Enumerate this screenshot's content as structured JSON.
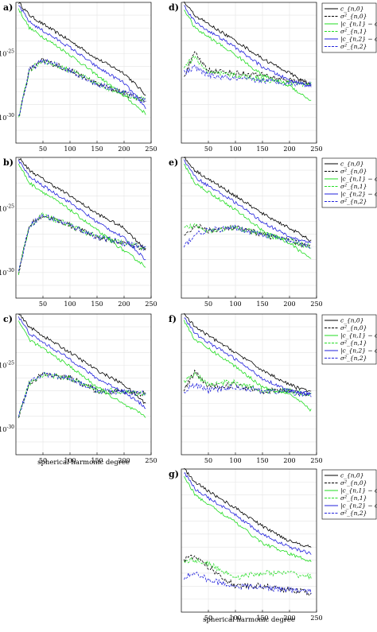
{
  "figure": {
    "xlabel": "spherical harmonic degree"
  },
  "legend_entries": [
    {
      "label": "c_{n,0}",
      "color": "#000000",
      "dash": false
    },
    {
      "label": "σ²_{n,0}",
      "color": "#000000",
      "dash": true
    },
    {
      "label": "|c_{n,1} − c_{n,0}|",
      "color": "#22dd22",
      "dash": false
    },
    {
      "label": "σ²_{n,1}",
      "color": "#22dd22",
      "dash": true
    },
    {
      "label": "|c_{n,2} − c_{n,0}|",
      "color": "#2222dd",
      "dash": false
    },
    {
      "label": "σ²_{n,2}",
      "color": "#2222dd",
      "dash": true
    }
  ],
  "chart_data": [
    {
      "type": "line",
      "panel": "a)",
      "x": [
        5,
        245
      ],
      "xlim": [
        0,
        250
      ],
      "log_y": true,
      "ylim": [
        1e-32,
        1e-21
      ],
      "yticks": [
        "10^{-25}",
        "10^{-30}"
      ],
      "xticks": [
        50,
        100,
        150,
        200,
        250
      ],
      "series": [
        {
          "legend": "c_{n,0}",
          "x": [
            5,
            25,
            50,
            100,
            150,
            200,
            240
          ],
          "y": [
            1e-21,
            1e-22,
            2e-23,
            1e-24,
            4e-26,
            3e-27,
            6e-29
          ]
        },
        {
          "legend": "σ²_{n,0}",
          "x": [
            5,
            25,
            50,
            100,
            150,
            200,
            240
          ],
          "y": [
            1e-30,
            5e-27,
            3e-26,
            5e-27,
            4e-28,
            8e-29,
            2e-29
          ]
        },
        {
          "legend": "|c_{n,1} − c_{n,0}|",
          "x": [
            5,
            25,
            50,
            100,
            150,
            200,
            240
          ],
          "y": [
            3e-22,
            1e-23,
            2e-24,
            8e-26,
            2e-27,
            5e-29,
            2e-30
          ]
        },
        {
          "legend": "σ²_{n,1}",
          "x": [
            5,
            25,
            50,
            100,
            150,
            200,
            240
          ],
          "y": [
            1e-30,
            5e-27,
            3e-26,
            5e-27,
            4e-28,
            8e-29,
            2e-29
          ]
        },
        {
          "legend": "|c_{n,2} − c_{n,0}|",
          "x": [
            5,
            25,
            50,
            100,
            150,
            200,
            240
          ],
          "y": [
            6e-22,
            3e-23,
            6e-24,
            3e-25,
            9e-27,
            5e-28,
            6e-30
          ]
        },
        {
          "legend": "σ²_{n,2}",
          "x": [
            5,
            25,
            50,
            100,
            150,
            200,
            240
          ],
          "y": [
            1e-30,
            5e-27,
            3e-26,
            5e-27,
            4e-28,
            1e-28,
            2e-29
          ]
        }
      ]
    },
    {
      "type": "line",
      "panel": "b)",
      "xlim": [
        0,
        250
      ],
      "log_y": true,
      "ylim": [
        1e-32,
        1e-21
      ],
      "yticks": [
        "10^{-25}",
        "10^{-30}"
      ],
      "xticks": [
        50,
        100,
        150,
        200,
        250
      ],
      "series": [
        {
          "legend": "c_{n,0}",
          "x": [
            5,
            25,
            50,
            100,
            150,
            200,
            240
          ],
          "y": [
            1e-21,
            1e-22,
            2e-23,
            1e-24,
            4e-26,
            3e-27,
            6e-29
          ]
        },
        {
          "legend": "σ²_{n,0}",
          "x": [
            5,
            25,
            50,
            100,
            150,
            200,
            240
          ],
          "y": [
            1e-30,
            5e-27,
            3e-26,
            5e-27,
            6e-28,
            2e-28,
            8e-29
          ]
        },
        {
          "legend": "|c_{n,1} − c_{n,0}|",
          "x": [
            5,
            25,
            50,
            100,
            150,
            200,
            240
          ],
          "y": [
            3e-22,
            1e-23,
            2e-24,
            8e-26,
            2e-27,
            5e-29,
            3e-30
          ]
        },
        {
          "legend": "σ²_{n,1}",
          "x": [
            5,
            25,
            50,
            100,
            150,
            200,
            240
          ],
          "y": [
            1e-30,
            5e-27,
            3e-26,
            5e-27,
            6e-28,
            2e-28,
            8e-29
          ]
        },
        {
          "legend": "|c_{n,2} − c_{n,0}|",
          "x": [
            5,
            25,
            50,
            100,
            150,
            200,
            240
          ],
          "y": [
            6e-22,
            3e-23,
            6e-24,
            3e-25,
            9e-27,
            5e-28,
            1e-29
          ]
        },
        {
          "legend": "σ²_{n,2}",
          "x": [
            5,
            25,
            50,
            100,
            150,
            200,
            240
          ],
          "y": [
            1e-30,
            5e-27,
            3e-26,
            5e-27,
            6e-28,
            2e-28,
            8e-29
          ]
        }
      ]
    },
    {
      "type": "line",
      "panel": "c)",
      "xlim": [
        0,
        250
      ],
      "log_y": true,
      "ylim": [
        1e-32,
        1e-21
      ],
      "yticks": [
        "10^{-25}",
        "10^{-30}"
      ],
      "xticks": [
        50,
        100,
        150,
        200,
        250
      ],
      "series": [
        {
          "legend": "c_{n,0}",
          "x": [
            5,
            25,
            50,
            100,
            150,
            200,
            240
          ],
          "y": [
            1e-21,
            1e-22,
            2e-23,
            1e-24,
            4e-26,
            3e-27,
            1e-28
          ]
        },
        {
          "legend": "σ²_{n,0}",
          "x": [
            5,
            25,
            50,
            100,
            150,
            200,
            240
          ],
          "y": [
            1e-29,
            4e-27,
            2e-26,
            1e-26,
            1e-27,
            8e-28,
            6e-28
          ]
        },
        {
          "legend": "|c_{n,1} − c_{n,0}|",
          "x": [
            5,
            25,
            50,
            100,
            150,
            200,
            240
          ],
          "y": [
            3e-22,
            1e-23,
            2e-24,
            8e-26,
            2e-27,
            8e-29,
            1e-29
          ]
        },
        {
          "legend": "σ²_{n,1}",
          "x": [
            5,
            25,
            50,
            100,
            150,
            200,
            240
          ],
          "y": [
            1e-29,
            4e-27,
            2e-26,
            1e-26,
            1e-27,
            8e-28,
            6e-28
          ]
        },
        {
          "legend": "|c_{n,2} − c_{n,0}|",
          "x": [
            5,
            25,
            50,
            100,
            150,
            200,
            240
          ],
          "y": [
            6e-22,
            3e-23,
            6e-24,
            3e-25,
            9e-27,
            8e-28,
            5e-29
          ]
        },
        {
          "legend": "σ²_{n,2}",
          "x": [
            5,
            25,
            50,
            100,
            150,
            200,
            240
          ],
          "y": [
            1e-29,
            4e-27,
            2e-26,
            1e-26,
            1e-27,
            8e-28,
            6e-28
          ]
        }
      ]
    },
    {
      "type": "line",
      "panel": "d)",
      "xlim": [
        0,
        250
      ],
      "log_y": true,
      "ylim": [
        1e-32,
        1e-21
      ],
      "xticks": [
        50,
        100,
        150,
        200,
        250
      ],
      "series": [
        {
          "legend": "c_{n,0}",
          "x": [
            5,
            25,
            50,
            100,
            150,
            200,
            240
          ],
          "y": [
            1e-21,
            1e-22,
            2e-23,
            1e-24,
            4e-26,
            3e-27,
            3e-28
          ]
        },
        {
          "legend": "σ²_{n,0}",
          "x": [
            5,
            25,
            50,
            100,
            150,
            200,
            240
          ],
          "y": [
            2e-27,
            1e-25,
            5e-27,
            3e-27,
            2e-27,
            8e-28,
            5e-28
          ]
        },
        {
          "legend": "|c_{n,1} − c_{n,0}|",
          "x": [
            5,
            25,
            50,
            100,
            150,
            200,
            240
          ],
          "y": [
            3e-22,
            1e-23,
            2e-24,
            8e-26,
            2e-27,
            3e-28,
            2e-29
          ]
        },
        {
          "legend": "σ²_{n,1}",
          "x": [
            5,
            25,
            50,
            100,
            150,
            200,
            240
          ],
          "y": [
            1e-26,
            5e-26,
            3e-27,
            2e-27,
            1e-27,
            5e-28,
            4e-28
          ]
        },
        {
          "legend": "|c_{n,2} − c_{n,0}|",
          "x": [
            5,
            25,
            50,
            100,
            150,
            200,
            240
          ],
          "y": [
            6e-22,
            3e-23,
            6e-24,
            3e-25,
            9e-27,
            8e-28,
            3e-28
          ]
        },
        {
          "legend": "σ²_{n,2}",
          "x": [
            5,
            25,
            50,
            100,
            150,
            200,
            240
          ],
          "y": [
            3e-27,
            8e-27,
            2e-27,
            1e-27,
            8e-28,
            5e-28,
            4e-28
          ]
        }
      ]
    },
    {
      "type": "line",
      "panel": "e)",
      "xlim": [
        0,
        250
      ],
      "log_y": true,
      "ylim": [
        1e-32,
        1e-21
      ],
      "xticks": [
        50,
        100,
        150,
        200,
        250
      ],
      "series": [
        {
          "legend": "c_{n,0}",
          "x": [
            5,
            25,
            50,
            100,
            150,
            200,
            240
          ],
          "y": [
            1e-21,
            1e-22,
            2e-23,
            1e-24,
            4e-26,
            3e-27,
            3e-28
          ]
        },
        {
          "legend": "σ²_{n,0}",
          "x": [
            5,
            25,
            50,
            100,
            150,
            200,
            240
          ],
          "y": [
            5e-28,
            5e-27,
            2e-27,
            3e-27,
            1e-27,
            3e-28,
            1e-28
          ]
        },
        {
          "legend": "|c_{n,1} − c_{n,0}|",
          "x": [
            5,
            25,
            50,
            100,
            150,
            200,
            240
          ],
          "y": [
            3e-22,
            1e-23,
            2e-24,
            8e-26,
            2e-27,
            2e-28,
            1e-29
          ]
        },
        {
          "legend": "σ²_{n,1}",
          "x": [
            5,
            25,
            50,
            100,
            150,
            200,
            240
          ],
          "y": [
            3e-27,
            5e-27,
            2e-27,
            3e-27,
            1e-27,
            3e-28,
            1e-28
          ]
        },
        {
          "legend": "|c_{n,2} − c_{n,0}|",
          "x": [
            5,
            25,
            50,
            100,
            150,
            200,
            240
          ],
          "y": [
            6e-22,
            3e-23,
            6e-24,
            3e-25,
            9e-27,
            6e-28,
            2e-28
          ]
        },
        {
          "legend": "σ²_{n,2}",
          "x": [
            5,
            25,
            50,
            100,
            150,
            200,
            240
          ],
          "y": [
            1e-28,
            1e-27,
            2e-27,
            3e-27,
            1e-27,
            3e-28,
            1e-28
          ]
        }
      ]
    },
    {
      "type": "line",
      "panel": "f)",
      "xlim": [
        0,
        250
      ],
      "log_y": true,
      "ylim": [
        1e-32,
        1e-21
      ],
      "xticks": [
        50,
        100,
        150,
        200,
        250
      ],
      "series": [
        {
          "legend": "c_{n,0}",
          "x": [
            5,
            25,
            50,
            100,
            150,
            200,
            240
          ],
          "y": [
            1e-21,
            1e-22,
            2e-23,
            1e-24,
            4e-26,
            3e-27,
            8e-28
          ]
        },
        {
          "legend": "σ²_{n,0}",
          "x": [
            5,
            25,
            50,
            100,
            150,
            200,
            240
          ],
          "y": [
            1e-27,
            3e-26,
            2e-27,
            3e-27,
            1e-27,
            1e-27,
            5e-28
          ]
        },
        {
          "legend": "|c_{n,1} − c_{n,0}|",
          "x": [
            5,
            25,
            50,
            100,
            150,
            200,
            240
          ],
          "y": [
            3e-22,
            1e-23,
            2e-24,
            8e-26,
            2e-27,
            6e-28,
            3e-29
          ]
        },
        {
          "legend": "σ²_{n,1}",
          "x": [
            5,
            25,
            50,
            100,
            150,
            200,
            240
          ],
          "y": [
            5e-27,
            2e-26,
            3e-27,
            5e-27,
            1e-27,
            1e-27,
            5e-28
          ]
        },
        {
          "legend": "|c_{n,2} − c_{n,0}|",
          "x": [
            5,
            25,
            50,
            100,
            150,
            200,
            240
          ],
          "y": [
            6e-22,
            3e-23,
            6e-24,
            3e-25,
            9e-27,
            1e-27,
            5e-28
          ]
        },
        {
          "legend": "σ²_{n,2}",
          "x": [
            5,
            25,
            50,
            100,
            150,
            200,
            240
          ],
          "y": [
            1e-27,
            3e-27,
            1e-27,
            2e-27,
            1e-27,
            8e-28,
            5e-28
          ]
        }
      ]
    },
    {
      "type": "line",
      "panel": "g)",
      "xlim": [
        0,
        250
      ],
      "log_y": true,
      "ylim": [
        1e-32,
        1e-21
      ],
      "xticks": [
        50,
        100,
        150,
        200,
        250
      ],
      "series": [
        {
          "legend": "c_{n,0}",
          "x": [
            5,
            25,
            50,
            100,
            150,
            200,
            240
          ],
          "y": [
            1e-21,
            1e-22,
            2e-23,
            1e-24,
            4e-26,
            3e-27,
            1e-27
          ]
        },
        {
          "legend": "σ²_{n,0}",
          "x": [
            5,
            25,
            50,
            100,
            150,
            200,
            240
          ],
          "y": [
            1e-28,
            2e-28,
            3e-29,
            1e-30,
            1e-30,
            5e-31,
            3e-31
          ]
        },
        {
          "legend": "|c_{n,1} − c_{n,0}|",
          "x": [
            5,
            25,
            50,
            100,
            150,
            200,
            240
          ],
          "y": [
            3e-22,
            1e-23,
            2e-24,
            8e-26,
            2e-27,
            3e-28,
            8e-29
          ]
        },
        {
          "legend": "σ²_{n,1}",
          "x": [
            5,
            25,
            50,
            100,
            150,
            200,
            240
          ],
          "y": [
            1e-28,
            1e-28,
            5e-29,
            5e-30,
            1e-29,
            1e-29,
            5e-30
          ]
        },
        {
          "legend": "|c_{n,2} − c_{n,0}|",
          "x": [
            5,
            25,
            50,
            100,
            150,
            200,
            240
          ],
          "y": [
            6e-22,
            3e-23,
            6e-24,
            3e-25,
            9e-27,
            1e-27,
            3e-28
          ]
        },
        {
          "legend": "σ²_{n,2}",
          "x": [
            5,
            25,
            50,
            100,
            150,
            200,
            240
          ],
          "y": [
            5e-30,
            1e-29,
            3e-30,
            1e-30,
            8e-31,
            5e-31,
            4e-31
          ]
        }
      ]
    }
  ]
}
